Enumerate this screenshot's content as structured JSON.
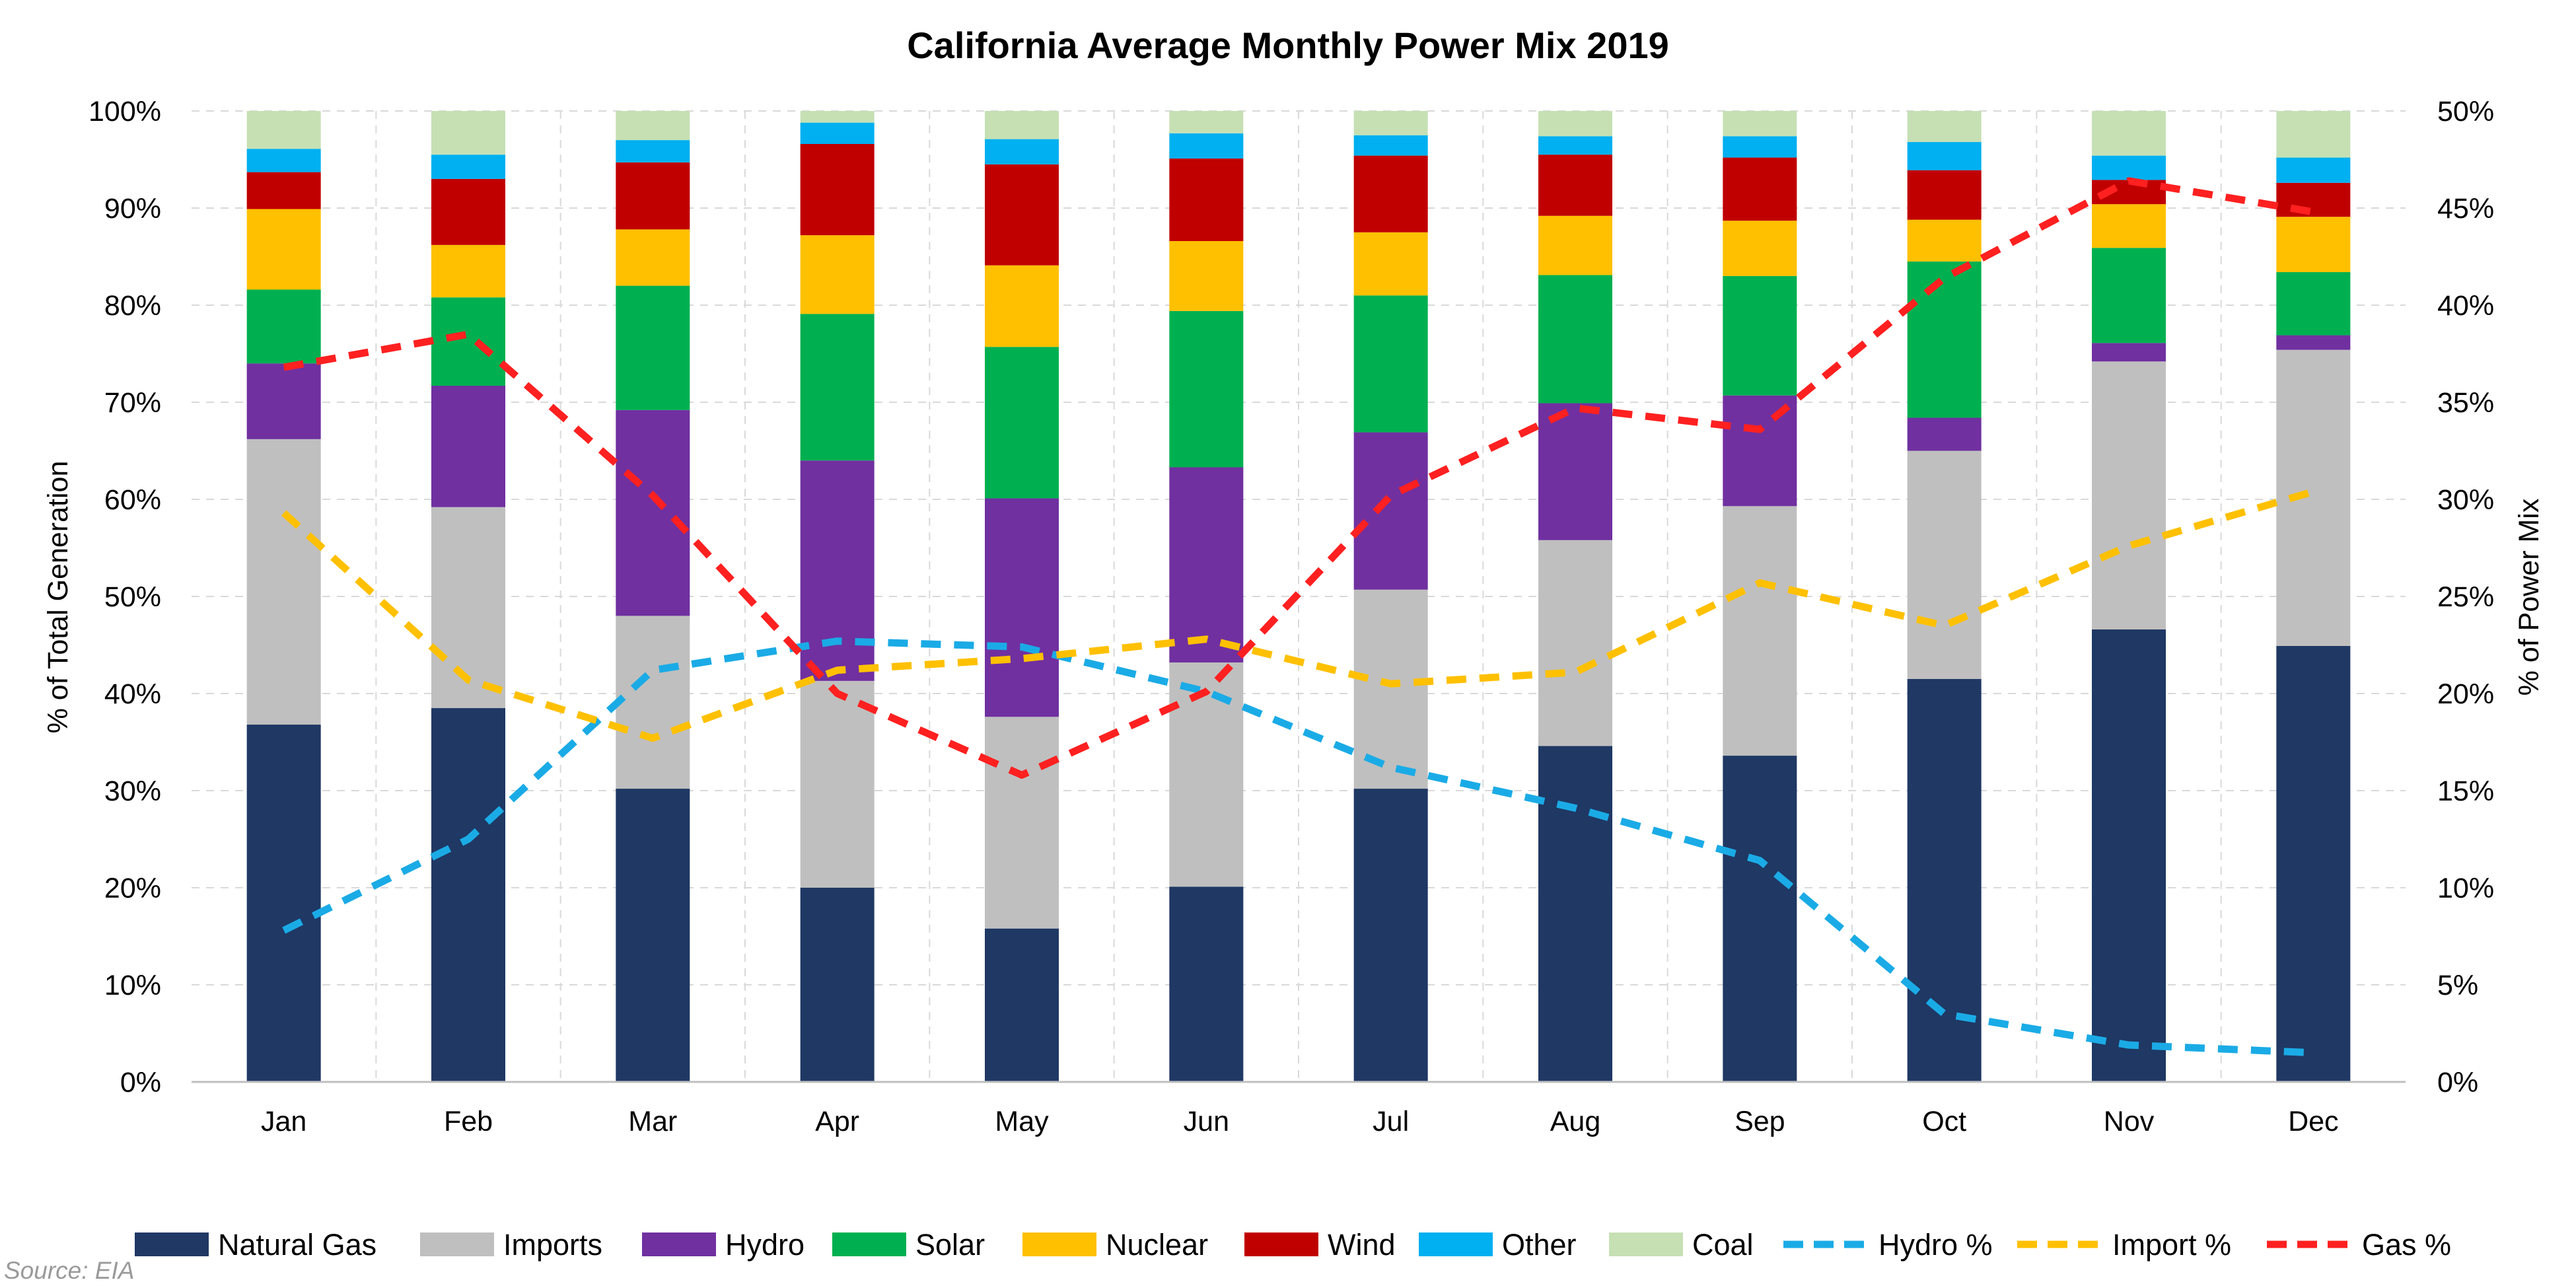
{
  "chart_data": {
    "type": "bar",
    "subtype": "stacked-bar-with-dual-axis-lines",
    "title": "California Average Monthly Power Mix 2019",
    "ylabel": "% of Total Generation",
    "y2label": "% of Power Mix",
    "source": "Source: EIA",
    "categories": [
      "Jan",
      "Feb",
      "Mar",
      "Apr",
      "May",
      "Jun",
      "Jul",
      "Aug",
      "Sep",
      "Oct",
      "Nov",
      "Dec"
    ],
    "y_ticks": [
      "0%",
      "10%",
      "20%",
      "30%",
      "40%",
      "50%",
      "60%",
      "70%",
      "80%",
      "90%",
      "100%"
    ],
    "y2_ticks": [
      "0%",
      "5%",
      "10%",
      "15%",
      "20%",
      "25%",
      "30%",
      "35%",
      "40%",
      "45%",
      "50%"
    ],
    "ylim": [
      0,
      100
    ],
    "y2lim": [
      0,
      50
    ],
    "grid": true,
    "legend_position": "bottom",
    "stacked_series": [
      {
        "name": "Natural Gas",
        "color": "#1f3864",
        "values": [
          36.8,
          38.5,
          30.2,
          20.0,
          15.8,
          20.1,
          30.2,
          34.6,
          33.6,
          41.5,
          46.6,
          44.9
        ]
      },
      {
        "name": "Imports",
        "color": "#bfbfbf",
        "values": [
          29.4,
          20.7,
          17.8,
          21.3,
          21.8,
          23.1,
          20.5,
          21.2,
          25.7,
          23.5,
          27.6,
          30.5
        ]
      },
      {
        "name": "Hydro",
        "color": "#7030a0",
        "values": [
          7.8,
          12.5,
          21.2,
          22.7,
          22.5,
          20.1,
          16.2,
          14.1,
          11.4,
          3.4,
          1.9,
          1.5
        ]
      },
      {
        "name": "Solar",
        "color": "#00b050",
        "values": [
          7.6,
          9.1,
          12.8,
          15.1,
          15.6,
          16.1,
          14.1,
          13.2,
          12.3,
          16.1,
          9.8,
          6.5
        ]
      },
      {
        "name": "Nuclear",
        "color": "#ffc000",
        "values": [
          8.3,
          5.4,
          5.8,
          8.1,
          8.4,
          7.2,
          6.5,
          6.1,
          5.7,
          4.3,
          4.5,
          5.7
        ]
      },
      {
        "name": "Wind",
        "color": "#c00000",
        "values": [
          3.8,
          6.8,
          6.9,
          9.4,
          10.4,
          8.5,
          7.9,
          6.3,
          6.5,
          5.1,
          2.5,
          3.5
        ]
      },
      {
        "name": "Other",
        "color": "#00b0f0",
        "values": [
          2.4,
          2.5,
          2.3,
          2.2,
          2.6,
          2.6,
          2.1,
          1.9,
          2.2,
          2.9,
          2.5,
          2.6
        ]
      },
      {
        "name": "Coal",
        "color": "#c6e0b4",
        "values": [
          3.9,
          4.5,
          3.0,
          1.2,
          2.9,
          2.3,
          2.5,
          2.6,
          2.6,
          3.2,
          4.6,
          4.8
        ]
      }
    ],
    "line_series": [
      {
        "name": "Hydro %",
        "color": "#1aabe6",
        "axis": "right",
        "values": [
          7.8,
          12.5,
          21.2,
          22.7,
          22.4,
          20.1,
          16.2,
          14.1,
          11.4,
          3.5,
          1.9,
          1.5
        ]
      },
      {
        "name": "Import %",
        "color": "#ffc000",
        "axis": "right",
        "values": [
          29.3,
          20.7,
          17.7,
          21.2,
          21.8,
          22.8,
          20.5,
          21.1,
          25.7,
          23.5,
          27.6,
          30.4
        ]
      },
      {
        "name": "Gas %",
        "color": "#ff2020",
        "axis": "right",
        "values": [
          36.8,
          38.5,
          30.2,
          20.0,
          15.8,
          20.1,
          30.2,
          34.7,
          33.6,
          41.4,
          46.4,
          44.8
        ]
      }
    ]
  }
}
